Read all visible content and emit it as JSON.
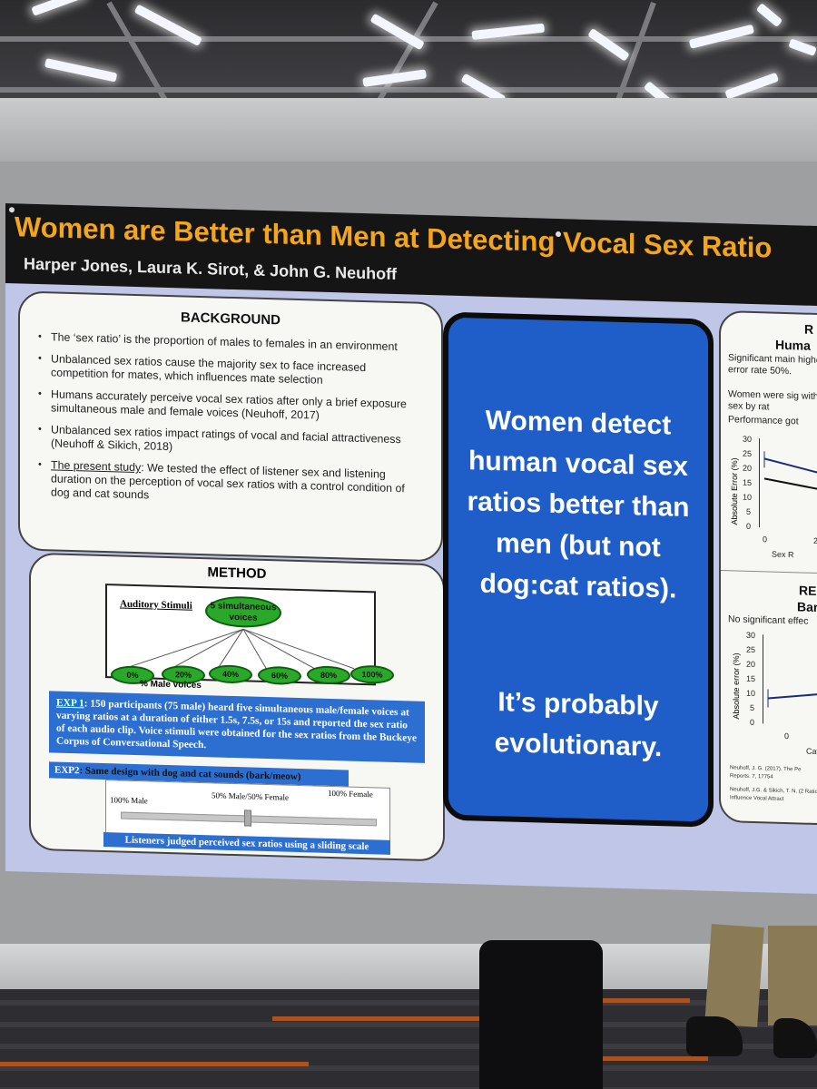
{
  "poster": {
    "title": "Women are Better than Men at Detecting Vocal Sex Ratio",
    "authors": "Harper Jones, Laura K. Sirot, & John G. Neuhoff",
    "background": {
      "heading": "BACKGROUND",
      "bullets": [
        "The ‘sex ratio’ is the proportion of males to females in an environment",
        "Unbalanced sex ratios cause the majority sex to face increased competition for mates, which influences mate selection",
        "Humans accurately perceive vocal sex ratios after only a brief exposure simultaneous male and female voices (Neuhoff, 2017)",
        "Unbalanced sex ratios impact ratings of vocal and facial attractiveness (Neuhoff & Sikich, 2018)"
      ],
      "present_label": "The present study",
      "present_text": ": We tested the effect of listener sex and listening duration on the perception of vocal sex ratios with a control condition of dog and cat sounds"
    },
    "method": {
      "heading": "METHOD",
      "stimuli_label": "Auditory Stimuli",
      "root_node": "5 simultaneous voices",
      "nodes": [
        "0%",
        "20%",
        "40%",
        "60%",
        "80%",
        "100%"
      ],
      "axis_label": "% Male voices",
      "exp1_tag": "EXP 1",
      "exp1_text": ": 150 participants (75 male) heard five simultaneous male/female voices at varying ratios at a duration of either 1.5s, 7.5s, or 15s and reported the sex ratio of each audio clip. Voice stimuli were obtained for the sex ratios from the Buckeye Corpus of Conversational Speech.",
      "exp2_tag": "EXP2",
      "exp2_text": ": Same design with dog and cat sounds (bark/meow)",
      "scale_left": "100% Male",
      "scale_mid": "50% Male/50% Female",
      "scale_right": "100% Female",
      "scale_caption": "Listeners judged perceived sex ratios using a sliding scale"
    },
    "center": {
      "line1": "Women detect human vocal sex ratios better than men (but not dog:cat ratios).",
      "line2": "It’s probably evolutionary."
    },
    "results": {
      "heading1": "R",
      "sub1": "Huma",
      "b1": "Significant main higher error rate 50%.",
      "b2": "Women were sig with a sex by rat",
      "b3": "Performance got",
      "ylabel": "Absolute Error (%)",
      "yticks1": [
        "30",
        "25",
        "20",
        "15",
        "10",
        "5",
        "0"
      ],
      "xtick1": "0",
      "xtick1b": "2",
      "xlabel1": "Sex R",
      "heading2": "RE",
      "sub2": "Bark",
      "b4": "No significant effec",
      "ylabel2": "Absolute error (%)",
      "yticks2": [
        "30",
        "25",
        "20",
        "15",
        "10",
        "5",
        "0"
      ],
      "xtick2": "0",
      "xlabel2": "Cat",
      "ref1": "Neuhoff, J. G. (2017). The Pe Reports. 7, 17754",
      "ref2": "Neuhoff, J.G. & Sikich, T. N. (2 Ratios Influence Vocal Attract"
    }
  }
}
